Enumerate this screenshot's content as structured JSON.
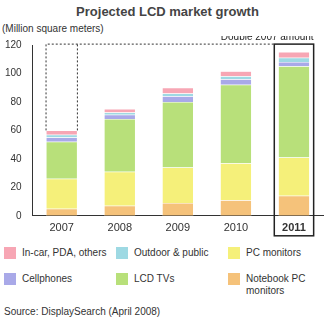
{
  "chart_data": {
    "type": "bar",
    "title": "Projected LCD market growth",
    "y_label": "(Million square meters)",
    "annotation": "Double 2007 amount",
    "source": "Source: DisplaySearch (April 2008)",
    "categories": [
      "2007",
      "2008",
      "2009",
      "2010",
      "2011"
    ],
    "series": [
      {
        "name": "Notebook PC monitors",
        "color": "#f5c27a",
        "values": [
          5,
          7,
          9,
          11,
          14
        ]
      },
      {
        "name": "PC monitors",
        "color": "#f5f07a",
        "values": [
          21,
          24,
          25,
          26,
          27
        ]
      },
      {
        "name": "LCD TVs",
        "color": "#b8e07a",
        "values": [
          26,
          37,
          46,
          55,
          64
        ]
      },
      {
        "name": "Cellphones",
        "color": "#a9a9e8",
        "values": [
          3,
          3,
          4,
          4,
          3
        ]
      },
      {
        "name": "Outdoor & public",
        "color": "#9ed9e3",
        "values": [
          2,
          1.5,
          2,
          2,
          3
        ]
      },
      {
        "name": "In-car, PDA, others",
        "color": "#f7a6b4",
        "values": [
          3,
          2.5,
          4,
          3.5,
          4
        ]
      }
    ],
    "ylim": [
      0,
      120
    ],
    "yticks": [
      0,
      20,
      40,
      60,
      80,
      100,
      120
    ],
    "stacked": true,
    "grid": false
  }
}
